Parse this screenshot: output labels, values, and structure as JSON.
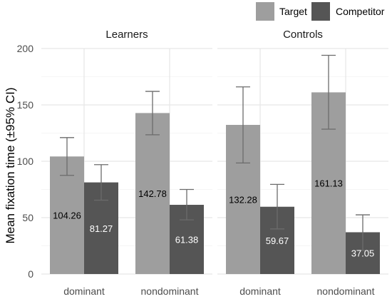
{
  "chart_data": {
    "type": "bar",
    "ylabel": "Mean fixation time (±95% CI)",
    "xlabel": "",
    "ylim": [
      0,
      200
    ],
    "yticks": [
      0,
      50,
      100,
      150,
      200
    ],
    "categories": [
      "dominant",
      "nondominant"
    ],
    "legend": {
      "position": "top-right",
      "items": [
        {
          "name": "Target",
          "color": "#9e9e9e"
        },
        {
          "name": "Competitor",
          "color": "#555555"
        }
      ]
    },
    "grid": true,
    "panels": [
      {
        "title": "Learners",
        "series": [
          {
            "name": "Target",
            "values": [
              104.26,
              142.78
            ],
            "ci_low": [
              87.5,
              123.5
            ],
            "ci_high": [
              121.0,
              162.0
            ],
            "labels": [
              "104.26",
              "142.78"
            ]
          },
          {
            "name": "Competitor",
            "values": [
              81.27,
              61.38
            ],
            "ci_low": [
              65.5,
              48.0
            ],
            "ci_high": [
              97.0,
              75.0
            ],
            "labels": [
              "81.27",
              "61.38"
            ]
          }
        ]
      },
      {
        "title": "Controls",
        "series": [
          {
            "name": "Target",
            "values": [
              132.28,
              161.13
            ],
            "ci_low": [
              98.5,
              128.5
            ],
            "ci_high": [
              166.0,
              194.0
            ],
            "labels": [
              "132.28",
              "161.13"
            ]
          },
          {
            "name": "Competitor",
            "values": [
              59.67,
              37.05
            ],
            "ci_low": [
              40.0,
              21.0
            ],
            "ci_high": [
              79.5,
              52.5
            ],
            "labels": [
              "59.67",
              "37.05"
            ]
          }
        ]
      }
    ]
  }
}
